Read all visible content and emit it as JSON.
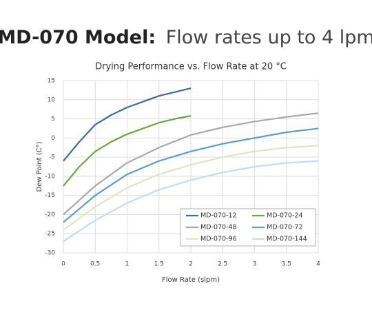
{
  "header": {
    "model": "MD-070 Model:",
    "subtitle": "Flow rates up to 4 lpm"
  },
  "chart_data": {
    "type": "line",
    "title": "Drying Performance vs. Flow Rate at 20 °C",
    "x_label": "Flow Rate (slpm)",
    "y_label": "Dew Point (C°)",
    "xlim": [
      0,
      4
    ],
    "xticks": [
      0,
      0.5,
      1,
      1.5,
      2,
      2.5,
      3,
      3.5,
      4
    ],
    "ylim": [
      -30,
      15
    ],
    "yticks": [
      15,
      10,
      5,
      0,
      -5,
      -10,
      -15,
      -20,
      -25,
      -30
    ],
    "grid": true,
    "legend": "lower right",
    "series": [
      {
        "name": "MD-070-12",
        "color": "#3d6aa3",
        "x": [
          0,
          0.25,
          0.5,
          0.75,
          1,
          1.25,
          1.5,
          1.75,
          2
        ],
        "values": [
          -6,
          -1,
          3.5,
          6,
          8,
          9.5,
          11,
          12,
          13
        ]
      },
      {
        "name": "MD-070-24",
        "color": "#68a83a",
        "x": [
          0,
          0.25,
          0.5,
          0.75,
          1,
          1.25,
          1.5,
          1.75,
          2
        ],
        "values": [
          -12.5,
          -7.5,
          -3.5,
          -1,
          1,
          2.5,
          4,
          5,
          5.8
        ]
      },
      {
        "name": "MD-070-48",
        "color": "#a9a9a9",
        "x": [
          0,
          0.5,
          1,
          1.5,
          2,
          2.5,
          3,
          3.5,
          4
        ],
        "values": [
          -20,
          -12.5,
          -6.5,
          -2.5,
          0.8,
          2.8,
          4.3,
          5.5,
          6.5
        ]
      },
      {
        "name": "MD-070-72",
        "color": "#5b9bd0",
        "x": [
          0,
          0.5,
          1,
          1.5,
          2,
          2.5,
          3,
          3.5,
          4
        ],
        "values": [
          -22,
          -15,
          -9.5,
          -6,
          -3.5,
          -1.5,
          0,
          1.5,
          2.5
        ]
      },
      {
        "name": "MD-070-96",
        "color": "#dfe4c6",
        "x": [
          0,
          0.5,
          1,
          1.5,
          2,
          2.5,
          3,
          3.5,
          4
        ],
        "values": [
          -24,
          -18,
          -13,
          -9.5,
          -7,
          -5,
          -3.5,
          -2.5,
          -2
        ]
      },
      {
        "name": "MD-070-144",
        "color": "#c6dbee",
        "x": [
          0,
          0.5,
          1,
          1.5,
          2,
          2.5,
          3,
          3.5,
          4
        ],
        "values": [
          -27,
          -21.5,
          -17,
          -13.5,
          -11,
          -9,
          -7.5,
          -6.5,
          -6
        ]
      }
    ]
  }
}
